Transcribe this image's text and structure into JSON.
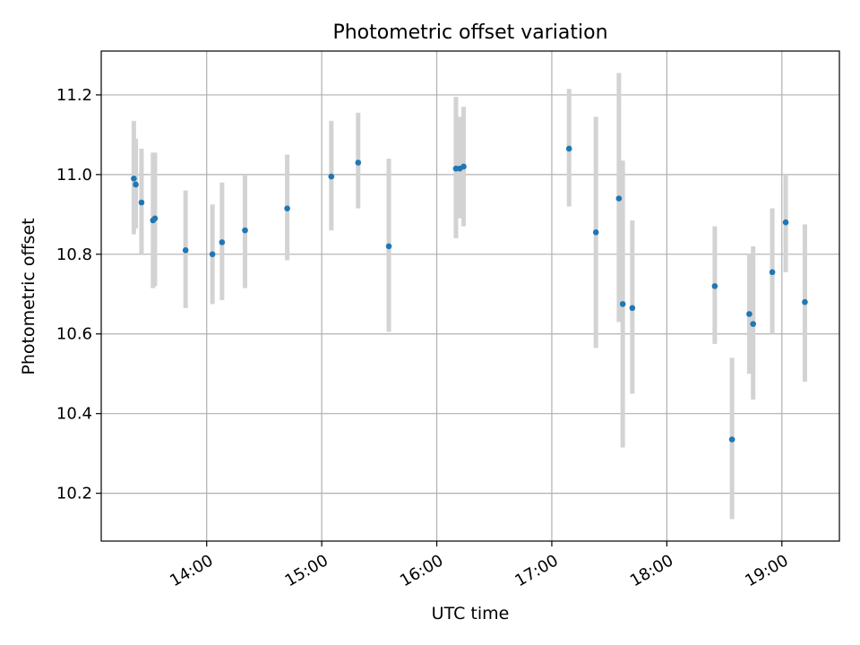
{
  "chart_data": {
    "type": "scatter",
    "title": "Photometric offset variation",
    "xlabel": "UTC time",
    "ylabel": "Photometric offset",
    "xlim": [
      "13:05",
      "19:30"
    ],
    "ylim": [
      10.08,
      11.31
    ],
    "x_ticks": [
      "14:00",
      "15:00",
      "16:00",
      "17:00",
      "18:00",
      "19:00"
    ],
    "y_ticks": [
      "10.2",
      "10.4",
      "10.6",
      "10.8",
      "11.0",
      "11.2"
    ],
    "grid": true,
    "colors": {
      "point": "#1f77b4",
      "errorbar": "#d3d3d3"
    },
    "points": [
      {
        "x": "13:22",
        "y": 10.99,
        "ylo": 10.85,
        "yhi": 11.135
      },
      {
        "x": "13:23",
        "y": 10.975,
        "ylo": 10.865,
        "yhi": 11.09
      },
      {
        "x": "13:26",
        "y": 10.93,
        "ylo": 10.8,
        "yhi": 11.065
      },
      {
        "x": "13:32",
        "y": 10.885,
        "ylo": 10.715,
        "yhi": 11.055
      },
      {
        "x": "13:33",
        "y": 10.89,
        "ylo": 10.72,
        "yhi": 11.055
      },
      {
        "x": "13:49",
        "y": 10.81,
        "ylo": 10.665,
        "yhi": 10.96
      },
      {
        "x": "14:03",
        "y": 10.8,
        "ylo": 10.675,
        "yhi": 10.925
      },
      {
        "x": "14:08",
        "y": 10.83,
        "ylo": 10.685,
        "yhi": 10.98
      },
      {
        "x": "14:20",
        "y": 10.86,
        "ylo": 10.715,
        "yhi": 11.0
      },
      {
        "x": "14:42",
        "y": 10.915,
        "ylo": 10.785,
        "yhi": 11.05
      },
      {
        "x": "15:05",
        "y": 10.995,
        "ylo": 10.86,
        "yhi": 11.135
      },
      {
        "x": "15:19",
        "y": 11.03,
        "ylo": 10.915,
        "yhi": 11.155
      },
      {
        "x": "15:35",
        "y": 10.82,
        "ylo": 10.605,
        "yhi": 11.04
      },
      {
        "x": "16:10",
        "y": 11.015,
        "ylo": 10.84,
        "yhi": 11.195
      },
      {
        "x": "16:12",
        "y": 11.015,
        "ylo": 10.89,
        "yhi": 11.145
      },
      {
        "x": "16:14",
        "y": 11.02,
        "ylo": 10.87,
        "yhi": 11.17
      },
      {
        "x": "17:09",
        "y": 11.065,
        "ylo": 10.92,
        "yhi": 11.215
      },
      {
        "x": "17:23",
        "y": 10.855,
        "ylo": 10.565,
        "yhi": 11.145
      },
      {
        "x": "17:35",
        "y": 10.94,
        "ylo": 10.63,
        "yhi": 11.255
      },
      {
        "x": "17:37",
        "y": 10.675,
        "ylo": 10.315,
        "yhi": 11.035
      },
      {
        "x": "17:42",
        "y": 10.665,
        "ylo": 10.45,
        "yhi": 10.885
      },
      {
        "x": "18:25",
        "y": 10.72,
        "ylo": 10.575,
        "yhi": 10.87
      },
      {
        "x": "18:34",
        "y": 10.335,
        "ylo": 10.135,
        "yhi": 10.54
      },
      {
        "x": "18:43",
        "y": 10.65,
        "ylo": 10.5,
        "yhi": 10.8
      },
      {
        "x": "18:45",
        "y": 10.625,
        "ylo": 10.435,
        "yhi": 10.82
      },
      {
        "x": "18:55",
        "y": 10.755,
        "ylo": 10.6,
        "yhi": 10.915
      },
      {
        "x": "19:02",
        "y": 10.88,
        "ylo": 10.755,
        "yhi": 11.0
      },
      {
        "x": "19:12",
        "y": 10.68,
        "ylo": 10.48,
        "yhi": 10.875
      }
    ]
  }
}
